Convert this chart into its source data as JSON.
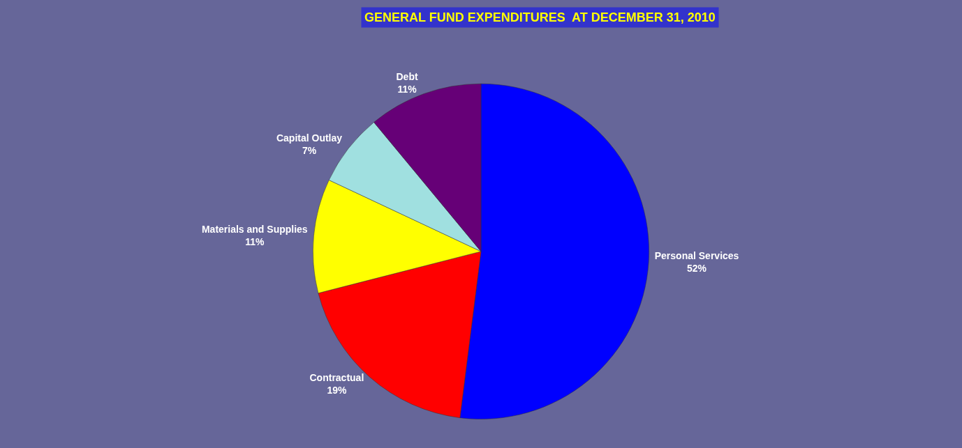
{
  "chart_data": {
    "type": "pie",
    "title": "GENERAL FUND EXPENDITURES  AT DECEMBER 31, 2010",
    "categories": [
      "Personal Services",
      "Contractual",
      "Materials and Supplies",
      "Capital Outlay",
      "Debt"
    ],
    "values": [
      52,
      19,
      11,
      7,
      11
    ],
    "value_labels": [
      "52%",
      "19%",
      "11%",
      "7%",
      "11%"
    ],
    "colors": [
      "#0000ff",
      "#ff0000",
      "#ffff00",
      "#a0e0e0",
      "#660077"
    ],
    "legend": false
  }
}
